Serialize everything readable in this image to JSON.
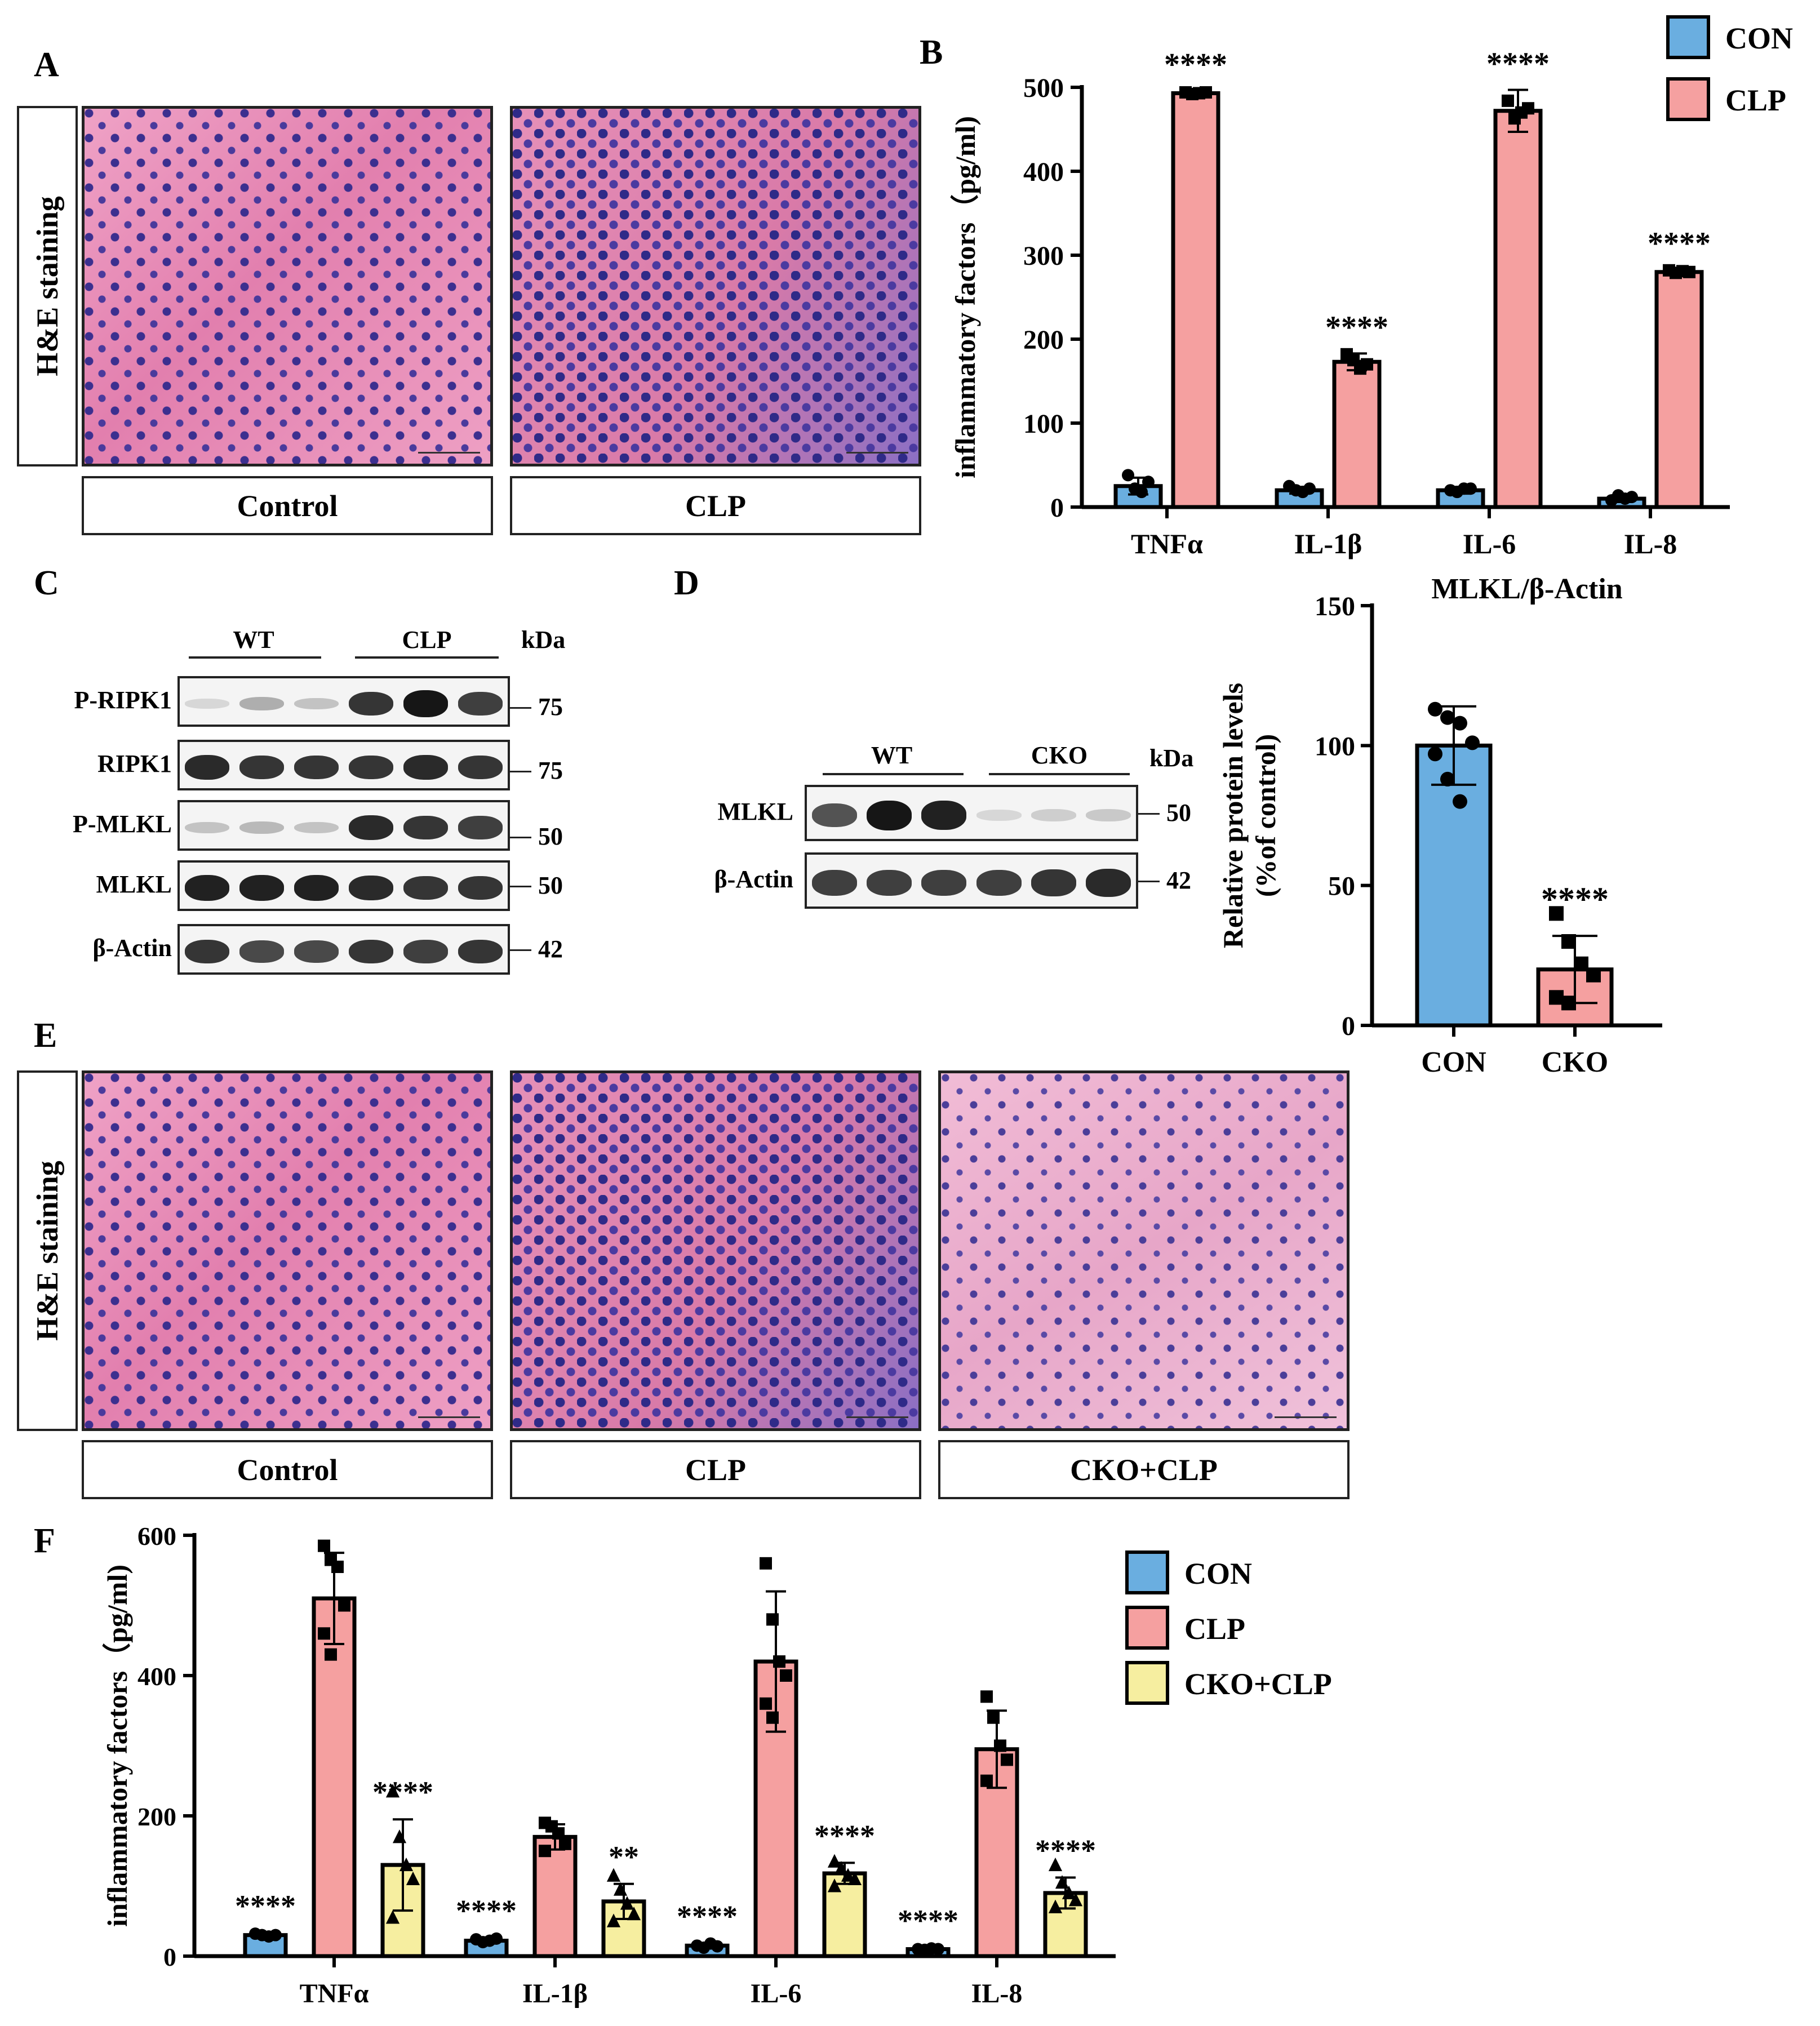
{
  "panels": {
    "a": "A",
    "b": "B",
    "c": "C",
    "d": "D",
    "e": "E",
    "f": "F"
  },
  "panelA": {
    "side_label": "H&E staining",
    "groups": [
      "Control",
      "CLP"
    ]
  },
  "panelE": {
    "side_label": "H&E staining",
    "groups": [
      "Control",
      "CLP",
      "CKO+CLP"
    ]
  },
  "panelC": {
    "group_labels": [
      "WT",
      "CLP"
    ],
    "kda": "kDa",
    "rows": [
      {
        "label": "P-RIPK1",
        "kda": "75"
      },
      {
        "label": "RIPK1",
        "kda": "75"
      },
      {
        "label": "P-MLKL",
        "kda": "50"
      },
      {
        "label": "MLKL",
        "kda": "50"
      },
      {
        "label": "β-Actin",
        "kda": "42"
      }
    ]
  },
  "panelD": {
    "group_labels": [
      "WT",
      "CKO"
    ],
    "kda": "kDa",
    "rows": [
      {
        "label": "MLKL",
        "kda": "50"
      },
      {
        "label": "β-Actin",
        "kda": "42"
      }
    ]
  },
  "chart_data": [
    {
      "id": "B",
      "type": "bar",
      "title": "",
      "ylabel": "inflammatory factors（pg/ml)",
      "categories": [
        "TNFα",
        "IL-1β",
        "IL-6",
        "IL-8"
      ],
      "ylim": [
        0,
        500
      ],
      "yticks": [
        0,
        100,
        200,
        300,
        400,
        500
      ],
      "series": [
        {
          "name": "CON",
          "color": "#6aaee0",
          "values": [
            25,
            20,
            20,
            10
          ],
          "err": [
            10,
            4,
            4,
            4
          ],
          "points": [
            [
              38,
              22,
              18,
              30
            ],
            [
              25,
              20,
              18,
              22
            ],
            [
              20,
              18,
              22,
              22
            ],
            [
              8,
              14,
              10,
              12
            ]
          ]
        },
        {
          "name": "CLP",
          "color": "#f5a0a0",
          "values": [
            493,
            173,
            472,
            280
          ],
          "err": [
            3,
            10,
            25,
            3
          ],
          "points": [
            [
              494,
              492,
              493,
              494
            ],
            [
              182,
              175,
              165,
              170
            ],
            [
              484,
              463,
              470,
              475
            ],
            [
              282,
              279,
              281,
              280
            ]
          ]
        }
      ],
      "annotations": [
        "****",
        "****",
        "****",
        "****"
      ]
    },
    {
      "id": "D",
      "type": "bar",
      "title": "MLKL/β-Actin",
      "ylabel": "Relative protein levels\n(%of control)",
      "categories": [
        "CON",
        "CKO"
      ],
      "ylim": [
        0,
        150
      ],
      "yticks": [
        0,
        50,
        100,
        150
      ],
      "values": [
        100,
        20
      ],
      "err": [
        14,
        12
      ],
      "colors": [
        "#6aaee0",
        "#f5a0a0"
      ],
      "points": [
        [
          113,
          110,
          108,
          101,
          97,
          88,
          80
        ],
        [
          40,
          30,
          22,
          18,
          10,
          8
        ]
      ],
      "annotations": [
        "",
        "****"
      ]
    },
    {
      "id": "F",
      "type": "bar",
      "title": "",
      "ylabel": "inflammatory factors（pg/ml)",
      "categories": [
        "TNFα",
        "IL-1β",
        "IL-6",
        "IL-8"
      ],
      "ylim": [
        0,
        600
      ],
      "yticks": [
        0,
        200,
        400,
        600
      ],
      "series": [
        {
          "name": "CON",
          "color": "#6aaee0",
          "values": [
            30,
            22,
            15,
            10
          ],
          "err": [
            3,
            4,
            3,
            2
          ],
          "points": [
            [
              32,
              30,
              28,
              30
            ],
            [
              24,
              20,
              22,
              25
            ],
            [
              15,
              12,
              18,
              14
            ],
            [
              10,
              9,
              11,
              10
            ]
          ]
        },
        {
          "name": "CLP",
          "color": "#f5a0a0",
          "values": [
            510,
            170,
            420,
            295
          ],
          "err": [
            65,
            18,
            100,
            55
          ],
          "points": [
            [
              585,
              565,
              555,
              500,
              460,
              430
            ],
            [
              190,
              185,
              175,
              160,
              150
            ],
            [
              560,
              480,
              420,
              400,
              360,
              340
            ],
            [
              370,
              340,
              300,
              280,
              250
            ]
          ]
        },
        {
          "name": "CKO+CLP",
          "color": "#f6eea0",
          "values": [
            130,
            78,
            118,
            90
          ],
          "err": [
            65,
            25,
            15,
            22
          ],
          "points": [
            [
              235,
              170,
              130,
              110,
              55
            ],
            [
              115,
              95,
              75,
              60,
              50
            ],
            [
              135,
              125,
              115,
              110,
              100
            ],
            [
              130,
              105,
              90,
              80,
              70
            ]
          ]
        }
      ],
      "annotations": [
        [
          "****",
          "****",
          "****",
          "****"
        ],
        [],
        [
          "****",
          "**",
          "****",
          "****"
        ]
      ]
    }
  ]
}
